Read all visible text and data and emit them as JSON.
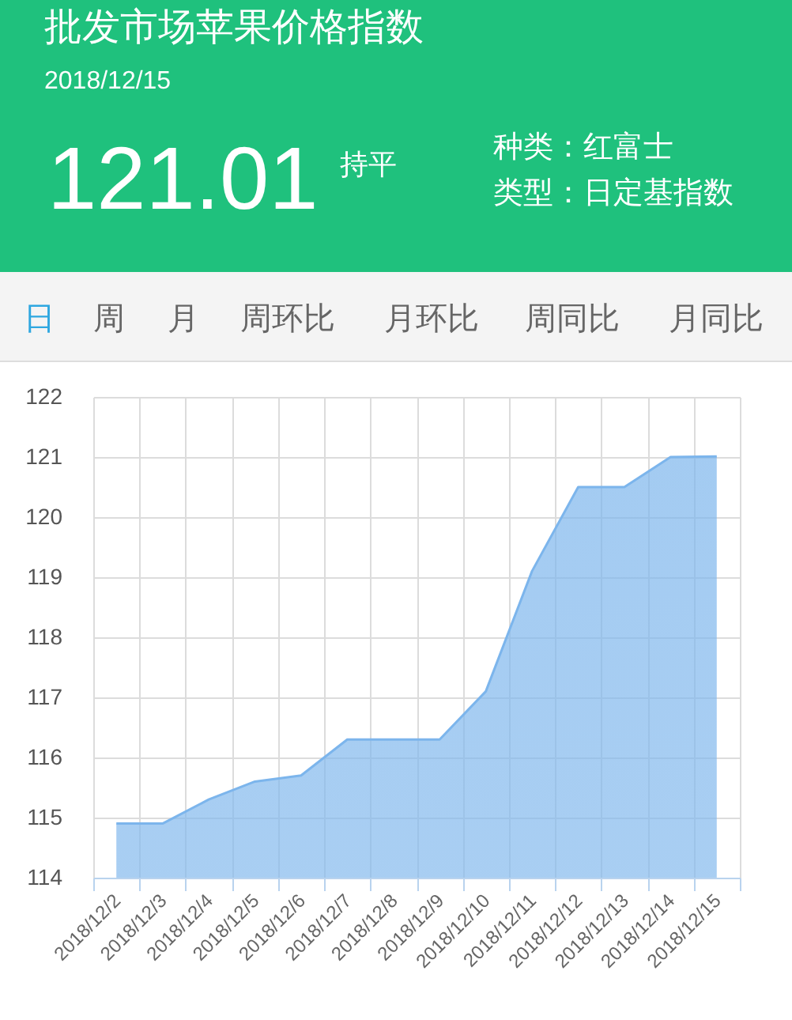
{
  "chart_data": {
    "type": "area",
    "title": "批发市场苹果价格指数",
    "subtitle": "2018/12/15",
    "annotations": [
      "121.01",
      "持平",
      "种类：红富士",
      "类型：日定基指数",
      "日",
      "周",
      "月",
      "周环比",
      "月环比",
      "周同比",
      "月同比"
    ],
    "categories": [
      "2018/12/2",
      "2018/12/3",
      "2018/12/4",
      "2018/12/5",
      "2018/12/6",
      "2018/12/7",
      "2018/12/8",
      "2018/12/9",
      "2018/12/10",
      "2018/12/11",
      "2018/12/12",
      "2018/12/13",
      "2018/12/14",
      "2018/12/15"
    ],
    "series": [
      {
        "color": "#7cb5ec",
        "values": [
          114.9,
          114.9,
          115.3,
          115.6,
          115.7,
          116.3,
          116.3,
          116.3,
          117.1,
          119.1,
          120.5,
          120.5,
          121.0,
          121.01
        ]
      }
    ],
    "ylim": [
      114,
      122
    ],
    "yticks": [
      114,
      115,
      116,
      117,
      118,
      119,
      120,
      121,
      122
    ],
    "grid": true
  }
}
